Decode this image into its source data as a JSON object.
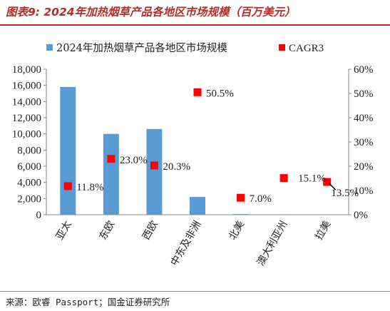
{
  "figure": {
    "title": "图表9: 2024年加热烟草产品各地区市场规模（百万美元）",
    "source": "来源：欧睿 Passport；国金证券研究所"
  },
  "chart_data": {
    "type": "bar",
    "categories": [
      "亚太",
      "东欧",
      "西欧",
      "中东及非洲",
      "北美",
      "澳大利亚州",
      "拉美"
    ],
    "series": [
      {
        "name": "2024年加热烟草产品各地区市场规模",
        "type": "bar",
        "axis": "left",
        "color": "#5b9bd5",
        "values": [
          15800,
          10000,
          10600,
          2200,
          80,
          50,
          20
        ]
      },
      {
        "name": "CAGR3",
        "type": "scatter",
        "axis": "right",
        "color": "#ff0000",
        "values": [
          11.8,
          23.0,
          20.3,
          50.5,
          7.0,
          15.1,
          13.5
        ],
        "labels": [
          "11.8%",
          "23.0%",
          "20.3%",
          "50.5%",
          "7.0%",
          "15.1%",
          "13.5%"
        ]
      }
    ],
    "left_axis": {
      "ylim": [
        0,
        18000
      ],
      "ticks": [
        "0",
        "2,000",
        "4,000",
        "6,000",
        "8,000",
        "10,000",
        "12,000",
        "14,000",
        "16,000",
        "18,000"
      ]
    },
    "right_axis": {
      "ylim": [
        0,
        60
      ],
      "ticks": [
        "0%",
        "10%",
        "20%",
        "30%",
        "40%",
        "50%",
        "60%"
      ]
    },
    "legend": {
      "position": "top"
    },
    "grid": false
  }
}
